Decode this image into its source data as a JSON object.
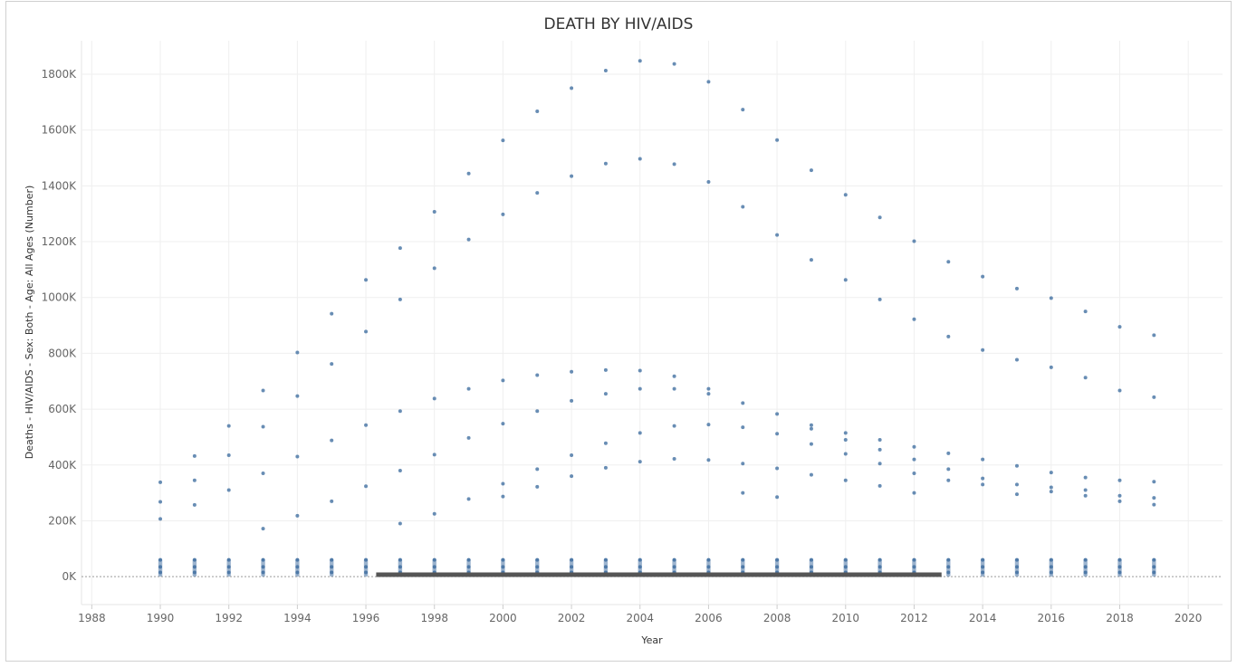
{
  "chart_data": {
    "type": "scatter",
    "title": "DEATH BY HIV/AIDS",
    "xlabel": "Year",
    "ylabel": "Deaths - HIV/AIDS - Sex: Both - Age: All Ages (Number)",
    "xlim": [
      1987.7,
      2021
    ],
    "ylim": [
      -100000,
      1920000
    ],
    "x_ticks": [
      1988,
      1990,
      1992,
      1994,
      1996,
      1998,
      2000,
      2002,
      2004,
      2006,
      2008,
      2010,
      2012,
      2014,
      2016,
      2018,
      2020
    ],
    "y_ticks": [
      {
        "value": 0,
        "label": "0K"
      },
      {
        "value": 200000,
        "label": "200K"
      },
      {
        "value": 400000,
        "label": "400K"
      },
      {
        "value": 600000,
        "label": "600K"
      },
      {
        "value": 800000,
        "label": "800K"
      },
      {
        "value": 1000000,
        "label": "1000K"
      },
      {
        "value": 1200000,
        "label": "1200K"
      },
      {
        "value": 1400000,
        "label": "1400K"
      },
      {
        "value": 1600000,
        "label": "1600K"
      },
      {
        "value": 1800000,
        "label": "1800K"
      }
    ],
    "grid": true,
    "marker_color": "#4e79a7",
    "dense_band": {
      "x_start": 1996.3,
      "x_end": 2012.8,
      "y": 7000,
      "color": "#555555"
    },
    "series": [
      {
        "x": [
          1990,
          1990,
          1990,
          1991,
          1991,
          1991,
          1992,
          1992,
          1992,
          1993,
          1993,
          1993,
          1993,
          1994,
          1994,
          1994,
          1994,
          1995,
          1995,
          1995,
          1995,
          1996,
          1996,
          1996,
          1996,
          1997,
          1997,
          1997,
          1997,
          1997,
          1998,
          1998,
          1998,
          1998,
          1998,
          1999,
          1999,
          1999,
          1999,
          1999,
          2000,
          2000,
          2000,
          2000,
          2000,
          2000,
          2001,
          2001,
          2001,
          2001,
          2001,
          2001,
          2002,
          2002,
          2002,
          2002,
          2002,
          2002,
          2003,
          2003,
          2003,
          2003,
          2003,
          2003,
          2004,
          2004,
          2004,
          2004,
          2004,
          2004,
          2005,
          2005,
          2005,
          2005,
          2005,
          2005,
          2006,
          2006,
          2006,
          2006,
          2006,
          2006,
          2007,
          2007,
          2007,
          2007,
          2007,
          2007,
          2008,
          2008,
          2008,
          2008,
          2008,
          2008,
          2009,
          2009,
          2009,
          2009,
          2009,
          2009,
          2010,
          2010,
          2010,
          2010,
          2010,
          2010,
          2011,
          2011,
          2011,
          2011,
          2011,
          2011,
          2012,
          2012,
          2012,
          2012,
          2012,
          2012,
          2013,
          2013,
          2013,
          2013,
          2013,
          2014,
          2014,
          2014,
          2014,
          2014,
          2015,
          2015,
          2015,
          2015,
          2015,
          2016,
          2016,
          2016,
          2016,
          2016,
          2017,
          2017,
          2017,
          2017,
          2017,
          2018,
          2018,
          2018,
          2018,
          2018,
          2019,
          2019,
          2019,
          2019,
          2019
        ],
        "y": [
          338000,
          268000,
          207000,
          432000,
          345000,
          257000,
          540000,
          435000,
          310000,
          667000,
          537000,
          370000,
          172000,
          803000,
          647000,
          430000,
          218000,
          942000,
          762000,
          488000,
          270000,
          1063000,
          878000,
          543000,
          324000,
          1177000,
          993000,
          593000,
          380000,
          190000,
          1307000,
          1105000,
          638000,
          437000,
          225000,
          1444000,
          1208000,
          673000,
          497000,
          278000,
          1563000,
          1298000,
          703000,
          548000,
          333000,
          287000,
          1667000,
          1375000,
          722000,
          593000,
          385000,
          322000,
          1750000,
          1435000,
          734000,
          630000,
          435000,
          360000,
          1813000,
          1480000,
          740000,
          655000,
          478000,
          390000,
          1848000,
          1497000,
          738000,
          673000,
          515000,
          412000,
          1837000,
          1478000,
          718000,
          673000,
          540000,
          422000,
          1773000,
          1414000,
          673000,
          655000,
          545000,
          418000,
          1673000,
          1325000,
          622000,
          535000,
          405000,
          300000,
          1564000,
          1224000,
          583000,
          512000,
          388000,
          285000,
          1456000,
          1135000,
          543000,
          530000,
          475000,
          365000,
          1368000,
          1063000,
          515000,
          490000,
          440000,
          345000,
          1287000,
          993000,
          490000,
          455000,
          405000,
          325000,
          1202000,
          922000,
          465000,
          420000,
          370000,
          300000,
          1128000,
          860000,
          442000,
          385000,
          345000,
          1075000,
          812000,
          420000,
          352000,
          330000,
          1032000,
          777000,
          397000,
          330000,
          295000,
          998000,
          750000,
          373000,
          320000,
          305000,
          950000,
          713000,
          355000,
          310000,
          290000,
          895000,
          667000,
          345000,
          290000,
          270000,
          865000,
          643000,
          340000,
          282000,
          258000
        ]
      }
    ]
  }
}
